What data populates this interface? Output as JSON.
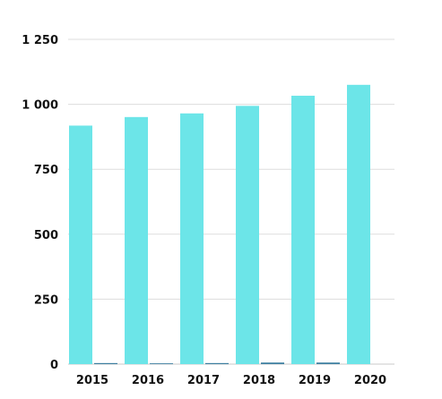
{
  "chart_data": {
    "type": "bar",
    "title": "",
    "xlabel": "",
    "ylabel": "",
    "categories": [
      "2015",
      "2016",
      "2017",
      "2018",
      "2019",
      "2020"
    ],
    "series": [
      {
        "values": [
          918,
          951,
          965,
          994,
          1033,
          1075
        ],
        "color": "#6ce5e8"
      },
      {
        "values": [
          4,
          3,
          4,
          6,
          6,
          0
        ],
        "color": "#3d7fa0"
      }
    ],
    "ylim": [
      0,
      1250
    ],
    "yticks": [
      "0",
      "250",
      "500",
      "750",
      "1 000",
      "1 250"
    ],
    "grid": true,
    "legend": "none"
  }
}
